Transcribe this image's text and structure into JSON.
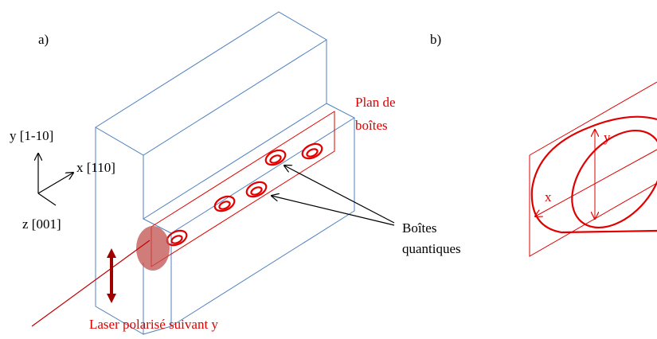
{
  "labels": {
    "a": "a)",
    "b": "b)"
  },
  "axes": {
    "y": "y [1-10]",
    "x": "x [110]",
    "z": "z [001]"
  },
  "plane_label": [
    "Plan de",
    "boîtes"
  ],
  "dots_label": [
    "Boîtes",
    "quantiques"
  ],
  "laser_label": "Laser polarisé suivant y",
  "panel_b": {
    "x": "x",
    "y": "y"
  }
}
